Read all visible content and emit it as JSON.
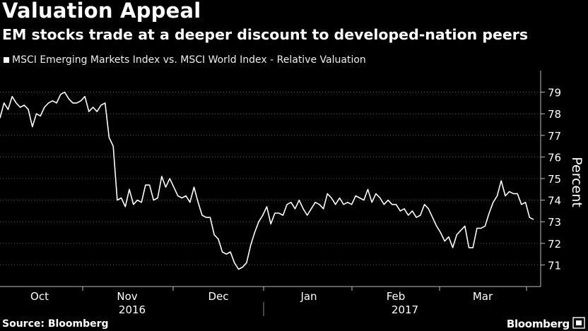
{
  "header": {
    "title": "Valuation Appeal",
    "subtitle": "EM stocks trade at a deeper discount to developed-nation peers"
  },
  "legend": {
    "label": "MSCI Emerging Markets Index vs. MSCI World Index - Relative Valuation"
  },
  "footer": {
    "source": "Source: Bloomberg",
    "brand": "Bloomberg"
  },
  "chart_data": {
    "type": "line",
    "title": "Valuation Appeal",
    "subtitle": "EM stocks trade at a deeper discount to developed-nation peers",
    "ylabel": "Percent",
    "xlabel": "",
    "ylim": [
      70,
      80
    ],
    "yticks": [
      71,
      72,
      73,
      74,
      75,
      76,
      77,
      78,
      79
    ],
    "y_axis_side": "right",
    "grid": "horizontal dotted",
    "legend_position": "top-left",
    "x_month_labels": [
      "Oct",
      "Nov",
      "Dec",
      "Jan",
      "Feb",
      "Mar"
    ],
    "x_year_labels": [
      "2016",
      "2017"
    ],
    "series": [
      {
        "name": "MSCI Emerging Markets Index vs. MSCI World Index - Relative Valuation",
        "color": "#ffffff",
        "values": [
          77.8,
          78.5,
          78.2,
          78.8,
          78.5,
          78.3,
          78.4,
          78.2,
          77.4,
          78.0,
          77.9,
          78.3,
          78.5,
          78.6,
          78.5,
          78.9,
          79.0,
          78.7,
          78.5,
          78.5,
          78.6,
          78.8,
          78.1,
          78.3,
          78.1,
          78.4,
          78.5,
          76.9,
          76.5,
          74.0,
          74.1,
          73.7,
          74.5,
          73.8,
          74.0,
          73.9,
          74.7,
          74.7,
          74.0,
          74.1,
          75.1,
          74.6,
          75.0,
          74.6,
          74.2,
          74.1,
          74.2,
          73.9,
          74.6,
          73.9,
          73.3,
          73.2,
          73.2,
          72.4,
          72.2,
          71.6,
          71.5,
          71.6,
          71.1,
          70.8,
          70.9,
          71.1,
          71.9,
          72.5,
          73.0,
          73.3,
          73.7,
          72.9,
          73.4,
          73.4,
          73.3,
          73.8,
          73.9,
          73.6,
          74.0,
          73.6,
          73.3,
          73.6,
          73.9,
          73.8,
          73.6,
          74.3,
          74.1,
          73.8,
          74.1,
          73.8,
          73.9,
          73.8,
          74.2,
          74.1,
          74.0,
          74.5,
          73.9,
          74.3,
          74.1,
          73.8,
          74.0,
          73.8,
          73.8,
          73.5,
          73.6,
          73.3,
          73.5,
          73.2,
          73.3,
          73.8,
          73.6,
          73.2,
          72.8,
          72.5,
          72.1,
          72.3,
          71.8,
          72.4,
          72.6,
          72.8,
          71.8,
          71.8,
          72.7,
          72.7,
          72.8,
          73.4,
          73.9,
          74.2,
          74.9,
          74.2,
          74.4,
          74.3,
          74.3,
          73.8,
          73.9,
          73.2,
          73.1
        ]
      }
    ]
  }
}
